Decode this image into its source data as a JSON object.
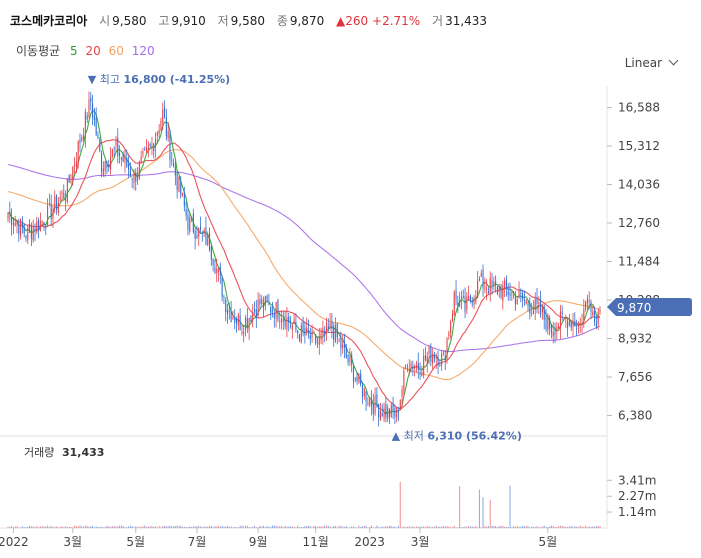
{
  "header": {
    "name": "코스메카코리아",
    "open_label": "시",
    "open": "9,580",
    "high_label": "고",
    "high": "9,910",
    "low_label": "저",
    "low": "9,580",
    "close_label": "종",
    "close": "9,870",
    "change": "▲260",
    "change_pct": "+2.71%",
    "volume_label": "거",
    "volume": "31,433"
  },
  "ma": {
    "label": "이동평균",
    "periods": [
      {
        "value": "5",
        "color": "#2ca02c"
      },
      {
        "value": "20",
        "color": "#e8414a"
      },
      {
        "value": "60",
        "color": "#f5a25d"
      },
      {
        "value": "120",
        "color": "#a56ce8"
      }
    ]
  },
  "scale_label": "Linear",
  "price_axis": {
    "ticks": [
      "16,588",
      "15,312",
      "14,036",
      "12,760",
      "11,484",
      "10,208",
      "8,932",
      "7,656",
      "6,380"
    ],
    "current": "9,870"
  },
  "annotations": {
    "high": {
      "label": "최고",
      "value": "16,800 (-41.25%)"
    },
    "low": {
      "label": "최저",
      "value": "6,310 (56.42%)"
    }
  },
  "volume_panel": {
    "label": "거래량",
    "value": "31,433",
    "ticks": [
      "3.41m",
      "2.27m",
      "1.14m"
    ]
  },
  "x_axis": {
    "ticks": [
      "2022",
      "3월",
      "5월",
      "7월",
      "9월",
      "11월",
      "2023",
      "3월",
      "5월"
    ]
  },
  "chart_data": {
    "type": "candlestick",
    "y_range": [
      5900,
      17300
    ],
    "volume_range": [
      0,
      4500000
    ],
    "months": [
      "2022-01",
      "2022-02",
      "2022-03",
      "2022-04",
      "2022-05",
      "2022-06",
      "2022-07",
      "2022-08",
      "2022-09",
      "2022-10",
      "2022-11",
      "2022-12",
      "2023-01",
      "2023-02",
      "2023-03",
      "2023-04",
      "2023-05"
    ],
    "monthly_close": [
      12900,
      13600,
      15500,
      14600,
      15200,
      12600,
      9700,
      9700,
      9000,
      7600,
      6500,
      8300,
      10600,
      10100,
      9300,
      9600,
      9870
    ],
    "period_high": 16800,
    "period_low": 6310,
    "last_close": 9870,
    "colors": {
      "up": "#e8414a",
      "down": "#2f6fd6",
      "current": "#4a6fb5"
    }
  }
}
